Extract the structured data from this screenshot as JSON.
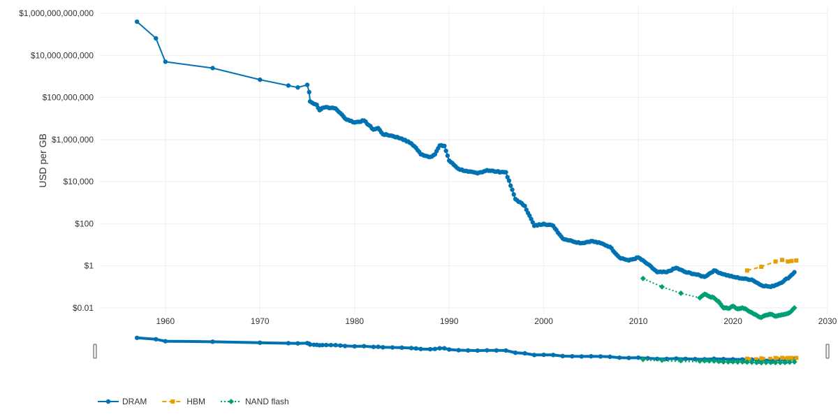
{
  "chart_data": {
    "type": "line",
    "title": "",
    "xlabel": "",
    "ylabel": "USD per GB",
    "yscale": "log",
    "ylim": [
      0.005,
      2000000000000
    ],
    "xlim": [
      1953,
      2030
    ],
    "grid": true,
    "legend_position": "bottom-left",
    "x_ticks": [
      1960,
      1970,
      1980,
      1990,
      2000,
      2010,
      2020,
      2030
    ],
    "x_tick_labels": [
      "1960",
      "1970",
      "1980",
      "1990",
      "2000",
      "2010",
      "2020",
      "2030"
    ],
    "y_ticks": [
      0.01,
      1,
      100,
      10000,
      1000000,
      100000000,
      10000000000,
      1000000000000
    ],
    "y_tick_labels": [
      "$0.01",
      "$1",
      "$100",
      "$10,000",
      "$1,000,000",
      "$100,000,000",
      "$10,000,000,000",
      "$1,000,000,000,000"
    ],
    "series": [
      {
        "name": "DRAM",
        "color": "#0072b2",
        "marker": "circle",
        "dash": "solid",
        "points": [
          [
            1957,
            400000000000
          ],
          [
            1959,
            65000000000
          ],
          [
            1960,
            5000000000
          ],
          [
            1965,
            2500000000
          ],
          [
            1970,
            700000000
          ],
          [
            1973,
            370000000
          ],
          [
            1974,
            300000000
          ],
          [
            1975,
            400000000
          ],
          [
            1975.2,
            180000000
          ],
          [
            1975.3,
            65000000
          ],
          [
            1975.7,
            50000000
          ],
          [
            1976,
            45000000
          ],
          [
            1976.3,
            25000000
          ],
          [
            1976.6,
            32000000
          ],
          [
            1977,
            35000000
          ],
          [
            1977.5,
            32000000
          ],
          [
            1978,
            30000000
          ],
          [
            1978.5,
            18000000
          ],
          [
            1979,
            10000000
          ],
          [
            1980,
            6500000
          ],
          [
            1981,
            8000000
          ],
          [
            1982,
            3000000
          ],
          [
            1982.5,
            3500000
          ],
          [
            1983,
            1800000
          ],
          [
            1984,
            1500000
          ],
          [
            1985,
            1100000
          ],
          [
            1986,
            650000
          ],
          [
            1986.5,
            400000
          ],
          [
            1987,
            200000
          ],
          [
            1988,
            150000
          ],
          [
            1988.5,
            200000
          ],
          [
            1989,
            520000
          ],
          [
            1989.5,
            500000
          ],
          [
            1990,
            100000
          ],
          [
            1991,
            40000
          ],
          [
            1992,
            30000
          ],
          [
            1993,
            25000
          ],
          [
            1994,
            35000
          ],
          [
            1995,
            30000
          ],
          [
            1996,
            28000
          ],
          [
            1997,
            1500
          ],
          [
            1998,
            700
          ],
          [
            1999,
            80
          ],
          [
            2000,
            100
          ],
          [
            2001,
            80
          ],
          [
            2002,
            20
          ],
          [
            2003,
            15
          ],
          [
            2004,
            12
          ],
          [
            2005,
            15
          ],
          [
            2006,
            12
          ],
          [
            2007,
            8
          ],
          [
            2008,
            2.5
          ],
          [
            2009,
            1.8
          ],
          [
            2010,
            2.5
          ],
          [
            2011,
            1.2
          ],
          [
            2012,
            0.5
          ],
          [
            2013,
            0.5
          ],
          [
            2014,
            0.8
          ],
          [
            2015,
            0.5
          ],
          [
            2016,
            0.4
          ],
          [
            2017,
            0.3
          ],
          [
            2018,
            0.6
          ],
          [
            2019,
            0.4
          ],
          [
            2020,
            0.3
          ],
          [
            2021,
            0.25
          ],
          [
            2022,
            0.22
          ],
          [
            2023,
            0.12
          ],
          [
            2024,
            0.1
          ],
          [
            2025,
            0.15
          ],
          [
            2026,
            0.3
          ],
          [
            2026.5,
            0.5
          ]
        ]
      },
      {
        "name": "HBM",
        "color": "#e69f00",
        "marker": "square",
        "dash": "dash",
        "points": [
          [
            2021.5,
            0.6
          ],
          [
            2023,
            0.9
          ],
          [
            2024.5,
            1.6
          ],
          [
            2025.2,
            1.9
          ],
          [
            2025.8,
            1.6
          ],
          [
            2026.2,
            1.7
          ],
          [
            2026.7,
            1.8
          ]
        ]
      },
      {
        "name": "NAND flash",
        "color": "#009e73",
        "marker": "diamond",
        "dash": "dot",
        "points": [
          [
            2010.5,
            0.25
          ],
          [
            2012.5,
            0.1
          ],
          [
            2014.5,
            0.05
          ],
          [
            2016.5,
            0.03
          ],
          [
            2017,
            0.045
          ],
          [
            2017.5,
            0.035
          ],
          [
            2018,
            0.03
          ],
          [
            2018.5,
            0.02
          ],
          [
            2019,
            0.01
          ],
          [
            2019.5,
            0.0095
          ],
          [
            2020,
            0.012
          ],
          [
            2020.5,
            0.009
          ],
          [
            2021,
            0.01
          ],
          [
            2021.5,
            0.008
          ],
          [
            2022,
            0.006
          ],
          [
            2022.5,
            0.0045
          ],
          [
            2023,
            0.0035
          ],
          [
            2023.5,
            0.0045
          ],
          [
            2024,
            0.005
          ],
          [
            2024.5,
            0.004
          ],
          [
            2025,
            0.0045
          ],
          [
            2025.5,
            0.005
          ],
          [
            2026,
            0.006
          ],
          [
            2026.5,
            0.01
          ]
        ]
      }
    ]
  }
}
